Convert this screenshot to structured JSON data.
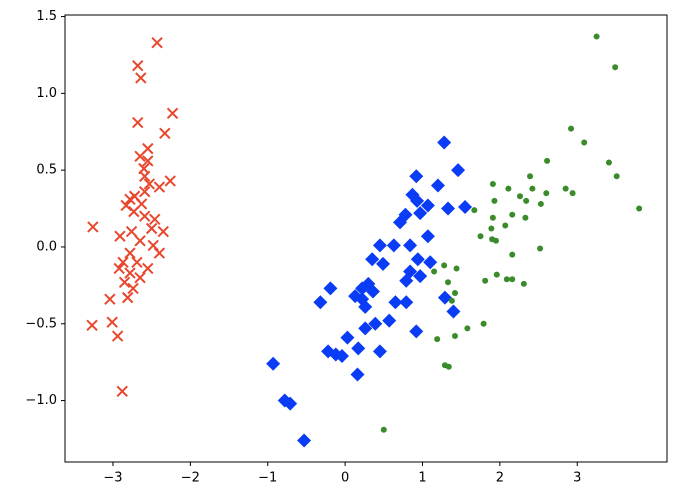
{
  "chart_data": {
    "type": "scatter",
    "xlim": [
      -3.62,
      4.16
    ],
    "ylim": [
      -1.4,
      1.51
    ],
    "xticks": [
      {
        "value": -3,
        "label": "−3"
      },
      {
        "value": -2,
        "label": "−2"
      },
      {
        "value": -1,
        "label": "−1"
      },
      0,
      1,
      2,
      3
    ],
    "yticks": [
      {
        "value": -1.0,
        "label": "−1.0"
      },
      {
        "value": -0.5,
        "label": "−0.5"
      },
      {
        "value": 0.0,
        "label": "0.0"
      },
      0.5,
      {
        "value": 1.0,
        "label": "1.0"
      },
      1.5
    ],
    "grid": false,
    "series": [
      {
        "color": "#e8472d",
        "marker": "x",
        "x": [
          -2.43,
          -2.68,
          -2.64,
          -2.23,
          -2.68,
          -2.33,
          -2.55,
          -2.65,
          -2.55,
          -2.6,
          -2.59,
          -2.26,
          -2.4,
          -2.53,
          -2.59,
          -2.72,
          -2.78,
          -2.83,
          -2.63,
          -2.73,
          -2.59,
          -2.46,
          -3.26,
          -2.5,
          -2.35,
          -2.76,
          -2.91,
          -2.65,
          -2.48,
          -2.78,
          -2.4,
          -2.87,
          -2.69,
          -2.55,
          -2.92,
          -2.78,
          -2.65,
          -2.85,
          -2.74,
          -2.81,
          -3.04,
          -3.01,
          -3.27,
          -2.94,
          -2.88
        ],
        "y": [
          1.33,
          1.18,
          1.1,
          0.87,
          0.81,
          0.74,
          0.64,
          0.59,
          0.56,
          0.51,
          0.46,
          0.43,
          0.39,
          0.41,
          0.36,
          0.33,
          0.31,
          0.27,
          0.28,
          0.23,
          0.2,
          0.18,
          0.13,
          0.12,
          0.1,
          0.1,
          0.07,
          0.04,
          0.01,
          -0.04,
          -0.04,
          -0.1,
          -0.1,
          -0.14,
          -0.14,
          -0.17,
          -0.2,
          -0.23,
          -0.27,
          -0.33,
          -0.34,
          -0.49,
          -0.51,
          -0.58,
          -0.94
        ]
      },
      {
        "color": "#0a3cf5",
        "marker": "D",
        "x": [
          1.28,
          1.46,
          0.92,
          1.2,
          0.87,
          0.93,
          1.07,
          1.33,
          1.55,
          0.78,
          0.71,
          0.97,
          1.07,
          0.45,
          0.63,
          0.84,
          0.94,
          1.1,
          0.35,
          0.49,
          0.84,
          0.97,
          0.79,
          0.3,
          0.22,
          0.36,
          0.13,
          0.22,
          1.29,
          -0.19,
          -0.32,
          0.65,
          0.79,
          0.26,
          1.4,
          0.57,
          0.39,
          0.26,
          0.92,
          0.03,
          0.17,
          0.45,
          -0.22,
          -0.04,
          -0.93,
          0.16,
          -0.78,
          -0.71,
          -0.53,
          -0.12
        ],
        "y": [
          0.68,
          0.5,
          0.46,
          0.4,
          0.34,
          0.3,
          0.27,
          0.25,
          0.26,
          0.21,
          0.16,
          0.22,
          0.07,
          0.01,
          0.01,
          0.01,
          -0.08,
          -0.1,
          -0.08,
          -0.11,
          -0.16,
          -0.19,
          -0.22,
          -0.24,
          -0.27,
          -0.29,
          -0.32,
          -0.34,
          -0.33,
          -0.27,
          -0.36,
          -0.36,
          -0.36,
          -0.39,
          -0.42,
          -0.48,
          -0.5,
          -0.53,
          -0.55,
          -0.59,
          -0.66,
          -0.68,
          -0.68,
          -0.71,
          -0.76,
          -0.83,
          -1.0,
          -1.02,
          -1.26,
          -0.7
        ]
      },
      {
        "color": "#3a8c2a",
        "marker": "o",
        "x": [
          3.25,
          3.49,
          2.92,
          3.09,
          2.61,
          3.41,
          3.51,
          2.39,
          1.91,
          2.11,
          2.42,
          2.85,
          2.94,
          2.6,
          2.26,
          1.93,
          2.34,
          2.53,
          3.8,
          1.67,
          1.91,
          2.16,
          2.33,
          1.89,
          2.07,
          1.75,
          1.9,
          1.95,
          2.52,
          2.16,
          1.28,
          1.15,
          1.44,
          1.96,
          2.09,
          1.81,
          2.16,
          1.33,
          2.31,
          1.42,
          1.38,
          1.79,
          1.58,
          1.42,
          1.19,
          1.29,
          1.34,
          0.5
        ],
        "y": [
          1.37,
          1.17,
          0.77,
          0.68,
          0.56,
          0.55,
          0.46,
          0.46,
          0.41,
          0.38,
          0.38,
          0.38,
          0.35,
          0.35,
          0.33,
          0.3,
          0.3,
          0.28,
          0.25,
          0.24,
          0.19,
          0.21,
          0.19,
          0.12,
          0.14,
          0.07,
          0.05,
          0.04,
          -0.01,
          -0.05,
          -0.12,
          -0.16,
          -0.14,
          -0.18,
          -0.21,
          -0.22,
          -0.21,
          -0.23,
          -0.24,
          -0.3,
          -0.35,
          -0.5,
          -0.53,
          -0.58,
          -0.6,
          -0.77,
          -0.78,
          -1.19
        ]
      }
    ]
  }
}
